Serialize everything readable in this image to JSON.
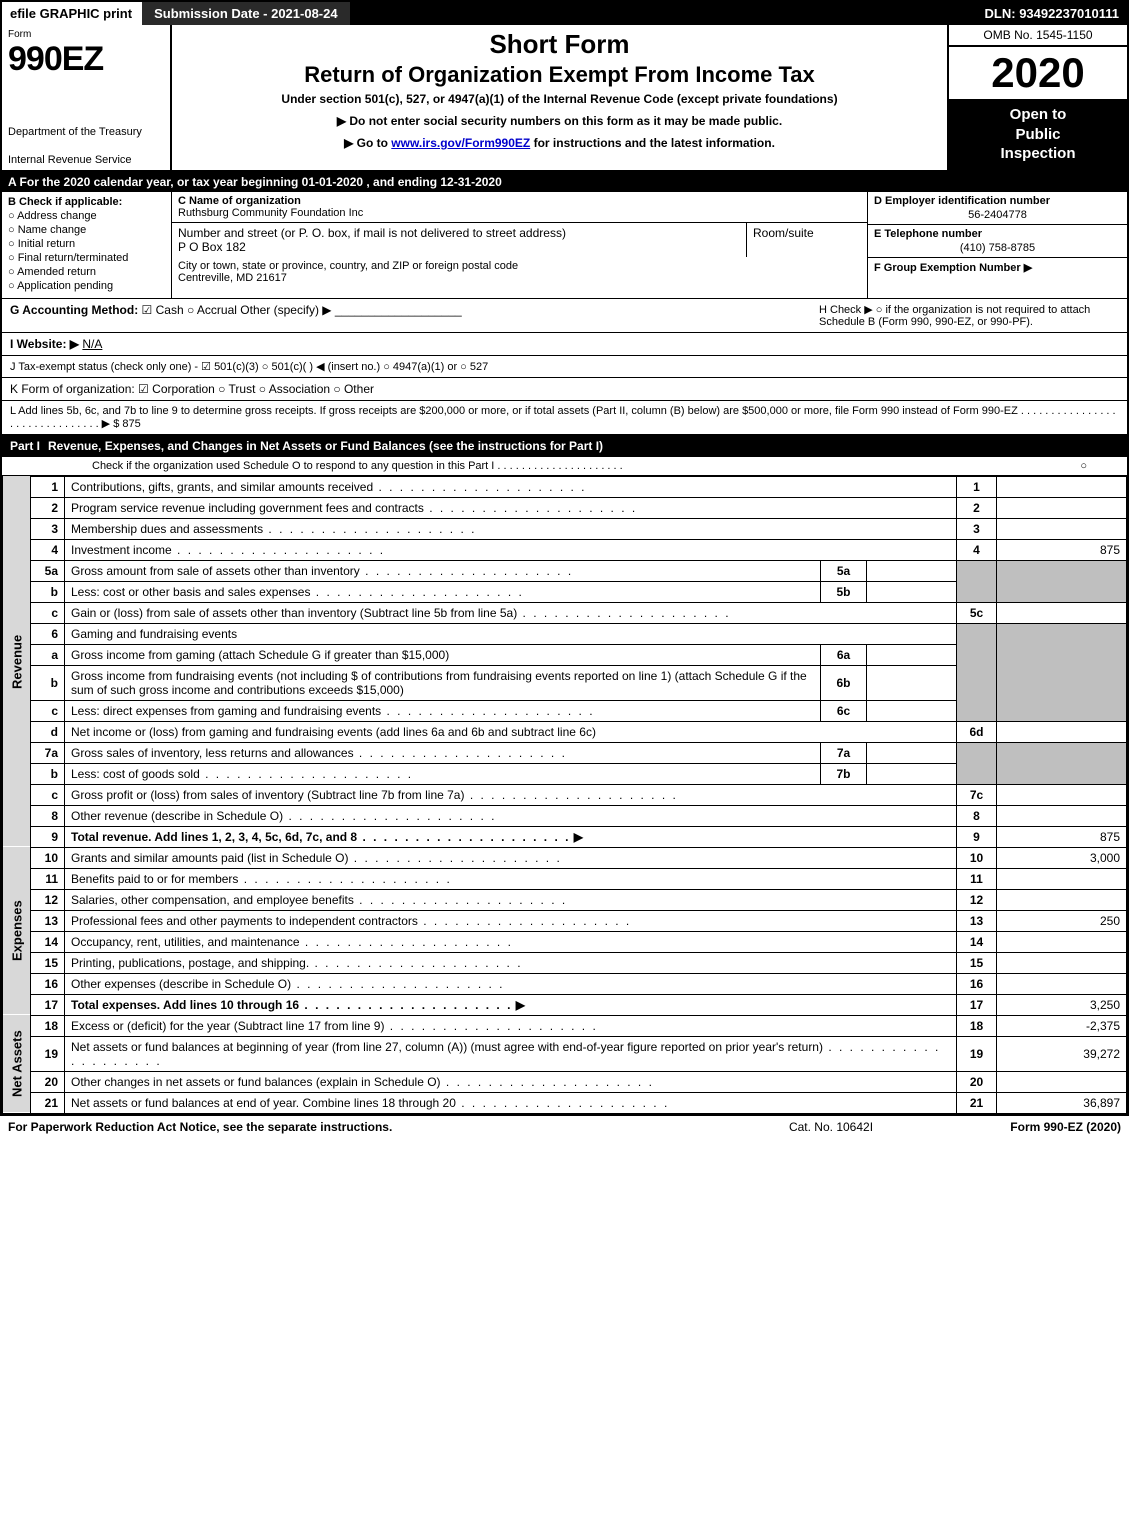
{
  "topbar": {
    "efile": "efile GRAPHIC print",
    "subdate_label": "Submission Date - 2021-08-24",
    "dln": "DLN: 93492237010111"
  },
  "header": {
    "form_word": "Form",
    "form_num": "990EZ",
    "dept1": "Department of the Treasury",
    "dept2": "Internal Revenue Service",
    "title1": "Short Form",
    "title2": "Return of Organization Exempt From Income Tax",
    "sub": "Under section 501(c), 527, or 4947(a)(1) of the Internal Revenue Code (except private foundations)",
    "arrow1": "▶ Do not enter social security numbers on this form as it may be made public.",
    "arrow2_pre": "▶ Go to ",
    "arrow2_link": "www.irs.gov/Form990EZ",
    "arrow2_post": " for instructions and the latest information.",
    "omb": "OMB No. 1545-1150",
    "year": "2020",
    "open1": "Open to",
    "open2": "Public",
    "open3": "Inspection"
  },
  "lineA": "A  For the 2020 calendar year, or tax year beginning 01-01-2020 , and ending 12-31-2020",
  "boxB": {
    "title": "B  Check if applicable:",
    "opts": [
      "Address change",
      "Name change",
      "Initial return",
      "Final return/terminated",
      "Amended return",
      "Application pending"
    ]
  },
  "boxC": {
    "c_label": "C Name of organization",
    "org": "Ruthsburg Community Foundation Inc",
    "ns_label": "Number and street (or P. O. box, if mail is not delivered to street address)",
    "ns_val": "P O Box 182",
    "rs_label": "Room/suite",
    "city_label": "City or town, state or province, country, and ZIP or foreign postal code",
    "city_val": "Centreville, MD  21617"
  },
  "boxR": {
    "d_label": "D Employer identification number",
    "d_val": "56-2404778",
    "e_label": "E Telephone number",
    "e_val": "(410) 758-8785",
    "f_label": "F Group Exemption Number  ▶"
  },
  "rowG": {
    "g": "G Accounting Method:",
    "cash": "Cash",
    "accrual": "Accrual",
    "other": "Other (specify) ▶",
    "h": "H  Check ▶  ○  if the organization is not required to attach Schedule B (Form 990, 990-EZ, or 990-PF)."
  },
  "rowI": {
    "label": "I Website: ▶",
    "val": "N/A"
  },
  "rowJ": "J Tax-exempt status (check only one) - ☑ 501(c)(3) ○ 501(c)(  ) ◀ (insert no.) ○ 4947(a)(1) or ○ 527",
  "rowK": "K Form of organization:   ☑ Corporation  ○ Trust  ○ Association  ○ Other",
  "rowL": "L Add lines 5b, 6c, and 7b to line 9 to determine gross receipts. If gross receipts are $200,000 or more, or if total assets (Part II, column (B) below) are $500,000 or more, file Form 990 instead of Form 990-EZ  . . . . . . . . . . . . . . . . . . . . . . . . . . . . . . .  ▶ $ 875",
  "part1": {
    "label": "Part I",
    "title": "Revenue, Expenses, and Changes in Net Assets or Fund Balances (see the instructions for Part I)",
    "sub": "Check if the organization used Schedule O to respond to any question in this Part I  . . . . . . . . . . . . . . . . . . . . .",
    "sub_box": "○"
  },
  "sides": {
    "rev": "Revenue",
    "exp": "Expenses",
    "na": "Net Assets"
  },
  "lines": {
    "1": {
      "d": "Contributions, gifts, grants, and similar amounts received",
      "ln": "1",
      "amt": ""
    },
    "2": {
      "d": "Program service revenue including government fees and contracts",
      "ln": "2",
      "amt": ""
    },
    "3": {
      "d": "Membership dues and assessments",
      "ln": "3",
      "amt": ""
    },
    "4": {
      "d": "Investment income",
      "ln": "4",
      "amt": "875"
    },
    "5a": {
      "d": "Gross amount from sale of assets other than inventory",
      "sub": "5a"
    },
    "5b": {
      "d": "Less: cost or other basis and sales expenses",
      "sub": "5b"
    },
    "5c": {
      "d": "Gain or (loss) from sale of assets other than inventory (Subtract line 5b from line 5a)",
      "ln": "5c",
      "amt": ""
    },
    "6": {
      "d": "Gaming and fundraising events"
    },
    "6a": {
      "d": "Gross income from gaming (attach Schedule G if greater than $15,000)",
      "sub": "6a"
    },
    "6b": {
      "d": "Gross income from fundraising events (not including $                    of contributions from fundraising events reported on line 1) (attach Schedule G if the sum of such gross income and contributions exceeds $15,000)",
      "sub": "6b"
    },
    "6c": {
      "d": "Less: direct expenses from gaming and fundraising events",
      "sub": "6c"
    },
    "6d": {
      "d": "Net income or (loss) from gaming and fundraising events (add lines 6a and 6b and subtract line 6c)",
      "ln": "6d",
      "amt": ""
    },
    "7a": {
      "d": "Gross sales of inventory, less returns and allowances",
      "sub": "7a"
    },
    "7b": {
      "d": "Less: cost of goods sold",
      "sub": "7b"
    },
    "7c": {
      "d": "Gross profit or (loss) from sales of inventory (Subtract line 7b from line 7a)",
      "ln": "7c",
      "amt": ""
    },
    "8": {
      "d": "Other revenue (describe in Schedule O)",
      "ln": "8",
      "amt": ""
    },
    "9": {
      "d": "Total revenue. Add lines 1, 2, 3, 4, 5c, 6d, 7c, and 8",
      "ln": "9",
      "amt": "875",
      "bold": true,
      "arrow": true
    },
    "10": {
      "d": "Grants and similar amounts paid (list in Schedule O)",
      "ln": "10",
      "amt": "3,000"
    },
    "11": {
      "d": "Benefits paid to or for members",
      "ln": "11",
      "amt": ""
    },
    "12": {
      "d": "Salaries, other compensation, and employee benefits",
      "ln": "12",
      "amt": ""
    },
    "13": {
      "d": "Professional fees and other payments to independent contractors",
      "ln": "13",
      "amt": "250"
    },
    "14": {
      "d": "Occupancy, rent, utilities, and maintenance",
      "ln": "14",
      "amt": ""
    },
    "15": {
      "d": "Printing, publications, postage, and shipping.",
      "ln": "15",
      "amt": ""
    },
    "16": {
      "d": "Other expenses (describe in Schedule O)",
      "ln": "16",
      "amt": ""
    },
    "17": {
      "d": "Total expenses. Add lines 10 through 16",
      "ln": "17",
      "amt": "3,250",
      "bold": true,
      "arrow": true
    },
    "18": {
      "d": "Excess or (deficit) for the year (Subtract line 17 from line 9)",
      "ln": "18",
      "amt": "-2,375"
    },
    "19": {
      "d": "Net assets or fund balances at beginning of year (from line 27, column (A)) (must agree with end-of-year figure reported on prior year's return)",
      "ln": "19",
      "amt": "39,272"
    },
    "20": {
      "d": "Other changes in net assets or fund balances (explain in Schedule O)",
      "ln": "20",
      "amt": ""
    },
    "21": {
      "d": "Net assets or fund balances at end of year. Combine lines 18 through 20",
      "ln": "21",
      "amt": "36,897"
    }
  },
  "footer": {
    "l": "For Paperwork Reduction Act Notice, see the separate instructions.",
    "c": "Cat. No. 10642I",
    "r": "Form 990-EZ (2020)"
  }
}
